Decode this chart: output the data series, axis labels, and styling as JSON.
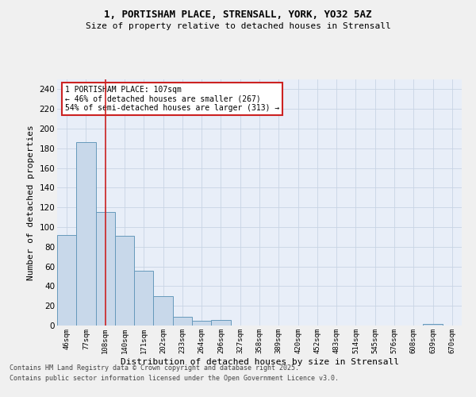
{
  "title_line1": "1, PORTISHAM PLACE, STRENSALL, YORK, YO32 5AZ",
  "title_line2": "Size of property relative to detached houses in Strensall",
  "xlabel": "Distribution of detached houses by size in Strensall",
  "ylabel": "Number of detached properties",
  "bar_labels": [
    "46sqm",
    "77sqm",
    "108sqm",
    "140sqm",
    "171sqm",
    "202sqm",
    "233sqm",
    "264sqm",
    "296sqm",
    "327sqm",
    "358sqm",
    "389sqm",
    "420sqm",
    "452sqm",
    "483sqm",
    "514sqm",
    "545sqm",
    "576sqm",
    "608sqm",
    "639sqm",
    "670sqm"
  ],
  "bar_values": [
    92,
    186,
    115,
    91,
    56,
    30,
    9,
    5,
    6,
    0,
    0,
    0,
    0,
    0,
    0,
    0,
    0,
    0,
    0,
    2,
    0
  ],
  "bar_color": "#c8d8ea",
  "bar_edge_color": "#6699bb",
  "grid_color": "#c8d4e4",
  "background_color": "#e8eef8",
  "fig_background": "#f0f0f0",
  "vline_x": 2,
  "vline_color": "#cc2222",
  "annotation_text": "1 PORTISHAM PLACE: 107sqm\n← 46% of detached houses are smaller (267)\n54% of semi-detached houses are larger (313) →",
  "annotation_box_color": "#ffffff",
  "annotation_box_edge": "#cc2222",
  "ylim": [
    0,
    250
  ],
  "yticks": [
    0,
    20,
    40,
    60,
    80,
    100,
    120,
    140,
    160,
    180,
    200,
    220,
    240
  ],
  "footnote1": "Contains HM Land Registry data © Crown copyright and database right 2025.",
  "footnote2": "Contains public sector information licensed under the Open Government Licence v3.0."
}
